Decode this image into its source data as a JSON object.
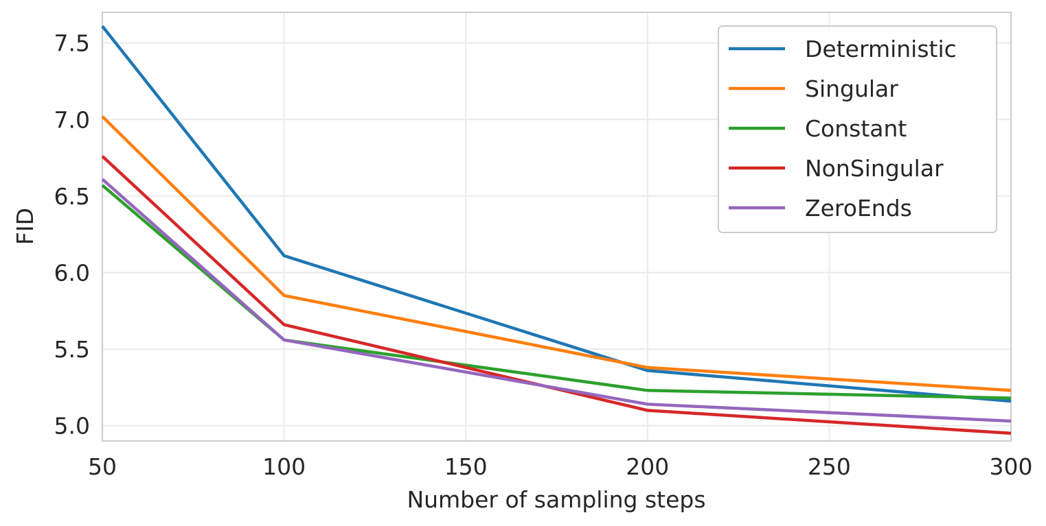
{
  "chart_data": {
    "type": "line",
    "title": "",
    "xlabel": "Number of sampling steps",
    "ylabel": "FID",
    "x": [
      50,
      100,
      200,
      300
    ],
    "xlim": [
      50,
      300
    ],
    "ylim": [
      4.9,
      7.7
    ],
    "xticks": [
      50,
      100,
      150,
      200,
      250,
      300
    ],
    "xtick_labels": [
      "50",
      "100",
      "150",
      "200",
      "250",
      "300"
    ],
    "yticks": [
      5.0,
      5.5,
      6.0,
      6.5,
      7.0,
      7.5
    ],
    "ytick_labels": [
      "5.0",
      "5.5",
      "6.0",
      "6.5",
      "7.0",
      "7.5"
    ],
    "grid": true,
    "legend_position": "top-right",
    "series": [
      {
        "name": "Deterministic",
        "color": "#1f77b4",
        "values": [
          7.61,
          6.11,
          5.36,
          5.16
        ]
      },
      {
        "name": "Singular",
        "color": "#ff7f0e",
        "values": [
          7.02,
          5.85,
          5.38,
          5.23
        ]
      },
      {
        "name": "Constant",
        "color": "#2ca02c",
        "values": [
          6.57,
          5.56,
          5.23,
          5.18
        ]
      },
      {
        "name": "NonSingular",
        "color": "#d62728",
        "values": [
          6.76,
          5.66,
          5.1,
          4.95
        ]
      },
      {
        "name": "ZeroEnds",
        "color": "#9467bd",
        "values": [
          6.61,
          5.56,
          5.14,
          5.03
        ]
      }
    ]
  }
}
